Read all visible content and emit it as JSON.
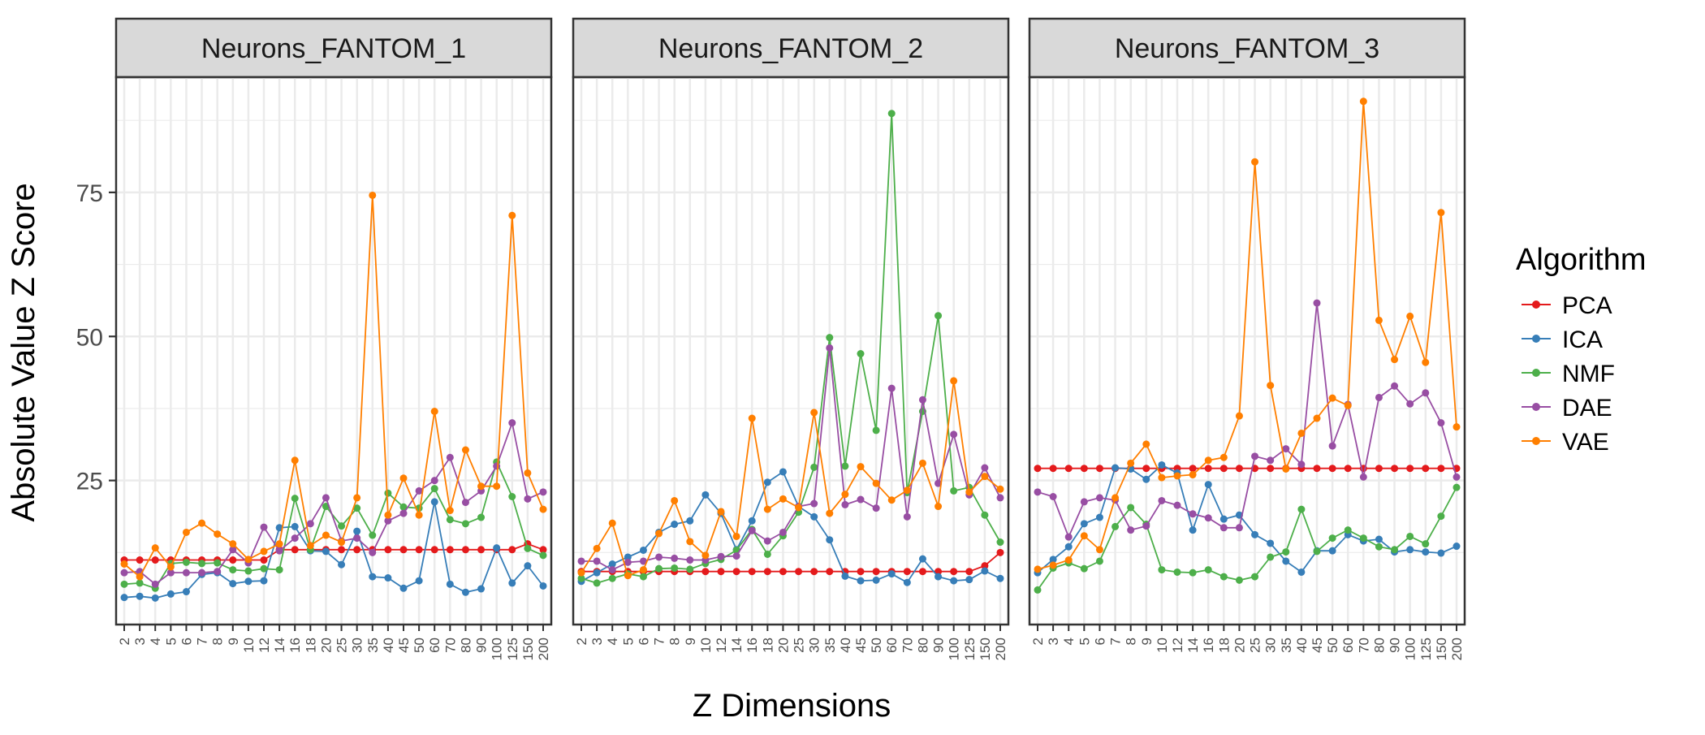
{
  "chart_data": {
    "type": "line",
    "xlabel": "Z Dimensions",
    "ylabel": "Absolute Value Z Score",
    "ylim": [
      0,
      95
    ],
    "y_ticks": [
      25,
      50,
      75
    ],
    "grid": true,
    "legend_position": "right",
    "legend_title": "Algorithm",
    "categories": [
      "2",
      "3",
      "4",
      "5",
      "6",
      "7",
      "8",
      "9",
      "10",
      "12",
      "14",
      "16",
      "18",
      "20",
      "25",
      "30",
      "35",
      "40",
      "45",
      "50",
      "60",
      "70",
      "80",
      "90",
      "100",
      "125",
      "150",
      "200"
    ],
    "colors": {
      "PCA": "#e41a1c",
      "ICA": "#377eb8",
      "NMF": "#4daf4a",
      "DAE": "#984ea3",
      "VAE": "#ff7f00"
    },
    "series_names": [
      "PCA",
      "ICA",
      "NMF",
      "DAE",
      "VAE"
    ],
    "panels": [
      {
        "title": "Neurons_FANTOM_1",
        "series": [
          {
            "name": "PCA",
            "values": [
              11.2,
              11.2,
              11.2,
              11.2,
              11.2,
              11.2,
              11.2,
              11.2,
              11.2,
              11.2,
              13.0,
              13.0,
              13.0,
              13.0,
              13.0,
              13.0,
              13.0,
              13.0,
              13.0,
              13.0,
              13.0,
              13.0,
              13.0,
              13.0,
              13.0,
              13.0,
              14.0,
              13.0
            ]
          },
          {
            "name": "ICA",
            "values": [
              4.7,
              4.9,
              4.6,
              5.3,
              5.7,
              8.7,
              9.0,
              7.1,
              7.5,
              7.6,
              16.8,
              17.0,
              12.8,
              12.7,
              10.4,
              16.2,
              8.3,
              8.1,
              6.3,
              7.6,
              21.3,
              7.0,
              5.6,
              6.2,
              13.3,
              7.2,
              10.2,
              6.7
            ]
          },
          {
            "name": "NMF",
            "values": [
              7.0,
              7.2,
              6.3,
              10.6,
              10.8,
              10.6,
              10.7,
              9.5,
              9.3,
              9.7,
              9.5,
              21.9,
              13.0,
              20.5,
              17.1,
              20.2,
              15.5,
              22.8,
              20.4,
              20.2,
              23.6,
              18.2,
              17.5,
              18.6,
              28.2,
              22.2,
              13.2,
              12.0
            ]
          },
          {
            "name": "DAE",
            "values": [
              9.0,
              9.2,
              7.0,
              9.0,
              9.0,
              9.0,
              9.2,
              13.0,
              10.7,
              16.9,
              12.8,
              15.0,
              17.5,
              22.0,
              14.5,
              15.0,
              12.5,
              18.0,
              19.3,
              23.2,
              25.0,
              29.0,
              21.2,
              23.2,
              27.5,
              35.0,
              21.8,
              23.0
            ]
          },
          {
            "name": "VAE",
            "values": [
              10.5,
              8.3,
              13.3,
              10.0,
              16.0,
              17.6,
              15.7,
              14.0,
              11.3,
              12.7,
              14.0,
              28.5,
              13.7,
              15.5,
              14.3,
              22.0,
              74.5,
              19.0,
              25.4,
              19.0,
              37.0,
              19.8,
              30.3,
              24.0,
              24.0,
              71.0,
              26.3,
              20.0
            ]
          }
        ]
      },
      {
        "title": "Neurons_FANTOM_2",
        "series": [
          {
            "name": "PCA",
            "values": [
              9.2,
              9.2,
              9.2,
              9.2,
              9.2,
              9.2,
              9.2,
              9.2,
              9.2,
              9.2,
              9.2,
              9.2,
              9.2,
              9.2,
              9.2,
              9.2,
              9.2,
              9.2,
              9.2,
              9.2,
              9.2,
              9.2,
              9.2,
              9.2,
              9.2,
              9.2,
              10.2,
              12.5
            ]
          },
          {
            "name": "ICA",
            "values": [
              7.5,
              9.0,
              10.5,
              11.7,
              12.9,
              16.0,
              17.4,
              18.0,
              22.5,
              19.3,
              13.0,
              18.0,
              24.7,
              26.5,
              20.5,
              18.7,
              14.7,
              8.4,
              7.6,
              7.7,
              8.8,
              7.3,
              11.4,
              8.3,
              7.6,
              7.8,
              9.3,
              8.0
            ]
          },
          {
            "name": "NMF",
            "values": [
              8.0,
              7.2,
              8.0,
              8.8,
              8.3,
              9.7,
              9.8,
              9.6,
              10.6,
              11.3,
              12.9,
              16.5,
              12.2,
              15.4,
              19.5,
              27.3,
              49.8,
              27.5,
              47.0,
              33.7,
              88.7,
              22.9,
              37.0,
              53.6,
              23.2,
              23.8,
              19.0,
              14.3
            ]
          },
          {
            "name": "DAE",
            "values": [
              11.0,
              11.0,
              9.5,
              10.8,
              11.0,
              11.7,
              11.5,
              11.2,
              11.2,
              11.8,
              11.9,
              16.3,
              14.5,
              16.0,
              20.5,
              21.0,
              48.0,
              20.8,
              21.7,
              20.2,
              41.0,
              18.7,
              39.0,
              24.5,
              33.0,
              22.5,
              27.2,
              22.0
            ]
          },
          {
            "name": "VAE",
            "values": [
              9.0,
              13.2,
              17.6,
              8.5,
              9.5,
              15.8,
              21.5,
              14.4,
              12.0,
              19.6,
              15.3,
              35.8,
              20.0,
              21.8,
              20.3,
              36.8,
              19.3,
              22.6,
              27.4,
              24.5,
              21.6,
              23.3,
              28.0,
              20.5,
              42.3,
              23.0,
              25.7,
              23.5
            ]
          }
        ]
      },
      {
        "title": "Neurons_FANTOM_3",
        "series": [
          {
            "name": "PCA",
            "values": [
              27.1,
              27.1,
              27.1,
              27.1,
              27.1,
              27.1,
              27.1,
              27.1,
              27.1,
              27.1,
              27.1,
              27.1,
              27.1,
              27.1,
              27.1,
              27.1,
              27.1,
              27.1,
              27.1,
              27.1,
              27.1,
              27.1,
              27.1,
              27.1,
              27.1,
              27.1,
              27.1,
              27.1
            ]
          },
          {
            "name": "ICA",
            "values": [
              9.0,
              11.3,
              13.5,
              17.5,
              18.6,
              27.2,
              27.0,
              25.2,
              27.7,
              26.3,
              16.4,
              24.3,
              18.3,
              19.0,
              15.6,
              14.1,
              11.0,
              9.1,
              12.8,
              12.8,
              15.6,
              14.5,
              14.8,
              12.6,
              13.0,
              12.6,
              12.4,
              13.6
            ]
          },
          {
            "name": "NMF",
            "values": [
              6.0,
              9.8,
              10.7,
              9.7,
              11.0,
              17.0,
              20.3,
              17.4,
              9.5,
              9.1,
              9.0,
              9.5,
              8.3,
              7.7,
              8.3,
              11.7,
              12.6,
              20.0,
              12.7,
              15.0,
              16.4,
              15.0,
              13.5,
              13.0,
              15.3,
              14.0,
              18.8,
              23.8
            ]
          },
          {
            "name": "DAE",
            "values": [
              23.0,
              22.2,
              15.2,
              21.3,
              22.0,
              21.6,
              16.4,
              17.1,
              21.5,
              20.7,
              19.2,
              18.5,
              16.8,
              16.8,
              29.2,
              28.5,
              30.5,
              27.8,
              55.8,
              31.0,
              38.2,
              25.6,
              39.4,
              41.4,
              38.3,
              40.2,
              35.0,
              25.6
            ]
          },
          {
            "name": "VAE",
            "values": [
              9.6,
              10.3,
              11.2,
              15.4,
              13.0,
              22.0,
              28.0,
              31.3,
              25.5,
              25.8,
              26.0,
              28.5,
              29.0,
              36.2,
              80.3,
              41.5,
              27.0,
              33.2,
              35.8,
              39.3,
              38.0,
              90.8,
              52.8,
              46.0,
              53.5,
              45.5,
              71.5,
              34.3
            ]
          }
        ]
      }
    ]
  }
}
